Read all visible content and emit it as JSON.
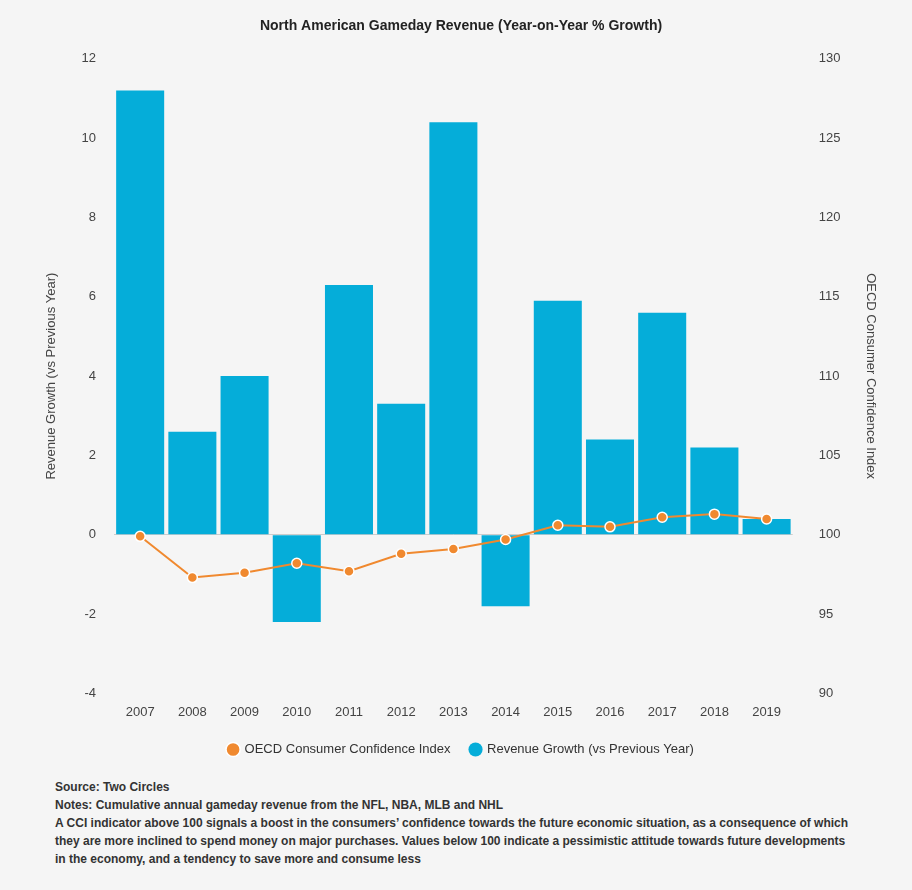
{
  "chart_data": {
    "type": "bar",
    "title": "North American Gameday Revenue (Year-on-Year % Growth)",
    "categories": [
      "2007",
      "2008",
      "2009",
      "2010",
      "2011",
      "2012",
      "2013",
      "2014",
      "2015",
      "2016",
      "2017",
      "2018",
      "2019"
    ],
    "series": [
      {
        "name": "Revenue Growth (vs Previous Year)",
        "type": "bar",
        "color": "#05ADD9",
        "values": [
          11.2,
          2.6,
          4.0,
          -2.2,
          6.3,
          3.3,
          10.4,
          -1.8,
          5.9,
          2.4,
          5.6,
          2.2,
          0.4
        ]
      },
      {
        "name": "OECD Consumer Confidence Index",
        "type": "line",
        "axis": "y2",
        "color": "#F0892F",
        "marker": "circle",
        "values": [
          99.9,
          97.3,
          97.6,
          98.2,
          97.7,
          98.8,
          99.1,
          99.7,
          100.6,
          100.5,
          101.1,
          101.3,
          101.0
        ]
      }
    ],
    "y_label": "Revenue Growth (vs Previous Year)",
    "y2_label": "OECD Consumer Confidence Index",
    "ylim": [
      -4,
      12
    ],
    "yticks": [
      -4,
      -2,
      0,
      2,
      4,
      6,
      8,
      10,
      12
    ],
    "y2lim": [
      90,
      130
    ],
    "y2ticks": [
      90,
      95,
      100,
      105,
      110,
      115,
      120,
      125,
      130
    ],
    "grid": false,
    "legend": "bottom",
    "source": "Source: Two Circles",
    "notes": [
      "Notes: Cumulative annual gameday revenue from the NFL, NBA, MLB and NHL",
      "A CCI indicator above 100 signals a boost in the consumers’ confidence towards the future economic situation, as a consequence of which they are more inclined to spend money on major purchases. Values below 100 indicate a pessimistic attitude towards future developments in the economy, and a tendency to save more and consume less"
    ]
  }
}
